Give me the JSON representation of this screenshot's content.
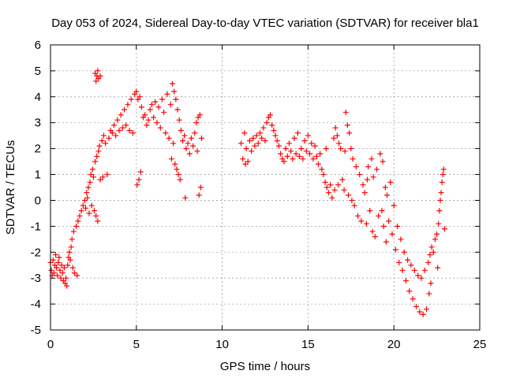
{
  "chart_data": {
    "type": "scatter",
    "title": "Day 053 of 2024, Sidereal Day-to-day VTEC variation (SDTVAR) for receiver bla1",
    "xlabel": "GPS time / hours",
    "ylabel": "SDTVAR / TECUs",
    "xlim": [
      0,
      25
    ],
    "ylim": [
      -5,
      6
    ],
    "xticks": [
      0,
      5,
      10,
      15,
      20,
      25
    ],
    "yticks": [
      -5,
      -4,
      -3,
      -2,
      -1,
      0,
      1,
      2,
      3,
      4,
      5,
      6
    ],
    "grid": true,
    "marker": "plus",
    "series_color": "#ff0000",
    "series": [
      {
        "name": "SDTVAR",
        "points": [
          [
            0.0,
            -2.4
          ],
          [
            0.05,
            -2.7
          ],
          [
            0.1,
            -2.9
          ],
          [
            0.15,
            -2.3
          ],
          [
            0.2,
            -2.8
          ],
          [
            0.25,
            -2.5
          ],
          [
            0.3,
            -2.1
          ],
          [
            0.35,
            -2.6
          ],
          [
            0.4,
            -2.9
          ],
          [
            0.45,
            -2.4
          ],
          [
            0.5,
            -2.2
          ],
          [
            0.55,
            -2.7
          ],
          [
            0.6,
            -3.0
          ],
          [
            0.65,
            -2.5
          ],
          [
            0.7,
            -2.8
          ],
          [
            0.75,
            -3.1
          ],
          [
            0.8,
            -2.6
          ],
          [
            0.85,
            -3.2
          ],
          [
            0.9,
            -3.0
          ],
          [
            0.95,
            -3.3
          ],
          [
            1.0,
            -2.5
          ],
          [
            1.05,
            -2.2
          ],
          [
            1.1,
            -2.0
          ],
          [
            1.15,
            -2.3
          ],
          [
            1.2,
            -1.8
          ],
          [
            1.25,
            -1.5
          ],
          [
            1.3,
            -2.6
          ],
          [
            1.35,
            -1.2
          ],
          [
            1.4,
            -2.8
          ],
          [
            1.5,
            -1.0
          ],
          [
            1.55,
            -2.9
          ],
          [
            1.6,
            -0.8
          ],
          [
            1.7,
            -0.6
          ],
          [
            1.8,
            -0.4
          ],
          [
            1.9,
            -0.2
          ],
          [
            2.0,
            0.0
          ],
          [
            2.05,
            -0.3
          ],
          [
            2.1,
            0.3
          ],
          [
            2.15,
            0.1
          ],
          [
            2.2,
            0.5
          ],
          [
            2.25,
            -0.5
          ],
          [
            2.3,
            0.7
          ],
          [
            2.35,
            1.0
          ],
          [
            2.4,
            -0.2
          ],
          [
            2.45,
            1.2
          ],
          [
            2.5,
            0.9
          ],
          [
            2.55,
            -0.4
          ],
          [
            2.6,
            1.5
          ],
          [
            2.65,
            -0.6
          ],
          [
            2.7,
            1.7
          ],
          [
            2.75,
            -0.8
          ],
          [
            2.8,
            1.9
          ],
          [
            2.85,
            2.1
          ],
          [
            2.9,
            0.8
          ],
          [
            3.0,
            2.3
          ],
          [
            3.05,
            0.9
          ],
          [
            3.1,
            2.5
          ],
          [
            3.2,
            2.2
          ],
          [
            3.3,
            1.0
          ],
          [
            3.4,
            2.4
          ],
          [
            3.5,
            2.7
          ],
          [
            3.6,
            2.6
          ],
          [
            3.7,
            2.9
          ],
          [
            3.8,
            2.5
          ],
          [
            3.9,
            3.1
          ],
          [
            4.0,
            2.7
          ],
          [
            4.1,
            3.3
          ],
          [
            4.2,
            2.8
          ],
          [
            4.3,
            3.5
          ],
          [
            4.4,
            2.9
          ],
          [
            4.5,
            3.7
          ],
          [
            4.6,
            2.7
          ],
          [
            4.7,
            3.9
          ],
          [
            4.8,
            2.6
          ],
          [
            4.9,
            4.1
          ],
          [
            5.0,
            4.2
          ],
          [
            5.05,
            0.6
          ],
          [
            5.1,
            3.9
          ],
          [
            5.15,
            0.8
          ],
          [
            5.2,
            4.0
          ],
          [
            5.25,
            1.1
          ],
          [
            5.3,
            3.6
          ],
          [
            5.4,
            3.2
          ],
          [
            5.5,
            3.3
          ],
          [
            5.6,
            2.9
          ],
          [
            5.7,
            3.1
          ],
          [
            5.8,
            3.5
          ],
          [
            5.9,
            3.7
          ],
          [
            6.0,
            3.2
          ],
          [
            6.1,
            3.8
          ],
          [
            6.2,
            3.0
          ],
          [
            6.3,
            3.6
          ],
          [
            6.4,
            2.8
          ],
          [
            6.5,
            3.9
          ],
          [
            6.6,
            3.4
          ],
          [
            6.7,
            2.6
          ],
          [
            6.8,
            4.1
          ],
          [
            6.9,
            2.4
          ],
          [
            7.0,
            3.7
          ],
          [
            7.05,
            1.6
          ],
          [
            7.1,
            4.5
          ],
          [
            7.15,
            2.2
          ],
          [
            7.2,
            4.2
          ],
          [
            7.25,
            1.4
          ],
          [
            7.3,
            3.9
          ],
          [
            7.35,
            1.2
          ],
          [
            7.4,
            3.5
          ],
          [
            7.45,
            1.0
          ],
          [
            7.5,
            3.1
          ],
          [
            7.55,
            0.8
          ],
          [
            7.6,
            2.7
          ],
          [
            7.7,
            2.3
          ],
          [
            7.8,
            2.5
          ],
          [
            7.85,
            0.1
          ],
          [
            7.9,
            2.0
          ],
          [
            8.0,
            2.2
          ],
          [
            8.1,
            1.8
          ],
          [
            8.2,
            2.4
          ],
          [
            8.3,
            2.1
          ],
          [
            8.4,
            2.6
          ],
          [
            8.5,
            3.0
          ],
          [
            8.55,
            1.9
          ],
          [
            8.6,
            3.2
          ],
          [
            8.65,
            0.2
          ],
          [
            8.7,
            3.3
          ],
          [
            8.75,
            0.5
          ],
          [
            8.8,
            2.4
          ],
          [
            2.6,
            4.9
          ],
          [
            2.7,
            4.8
          ],
          [
            2.75,
            5.0
          ],
          [
            2.8,
            4.7
          ],
          [
            2.9,
            4.8
          ],
          [
            2.65,
            4.6
          ],
          [
            11.1,
            2.2
          ],
          [
            11.2,
            1.6
          ],
          [
            11.3,
            2.6
          ],
          [
            11.35,
            1.4
          ],
          [
            11.4,
            2.0
          ],
          [
            11.5,
            1.5
          ],
          [
            11.6,
            2.3
          ],
          [
            11.7,
            1.9
          ],
          [
            11.8,
            2.4
          ],
          [
            11.9,
            2.1
          ],
          [
            12.0,
            2.5
          ],
          [
            12.1,
            2.2
          ],
          [
            12.2,
            2.6
          ],
          [
            12.3,
            2.4
          ],
          [
            12.4,
            2.8
          ],
          [
            12.5,
            2.3
          ],
          [
            12.6,
            3.0
          ],
          [
            12.7,
            3.2
          ],
          [
            12.8,
            3.3
          ],
          [
            12.9,
            2.9
          ],
          [
            13.0,
            2.7
          ],
          [
            13.1,
            2.5
          ],
          [
            13.2,
            2.3
          ],
          [
            13.3,
            2.1
          ],
          [
            13.4,
            1.8
          ],
          [
            13.5,
            1.6
          ],
          [
            13.6,
            1.5
          ],
          [
            13.7,
            2.0
          ],
          [
            13.8,
            1.7
          ],
          [
            13.9,
            2.2
          ],
          [
            14.0,
            1.9
          ],
          [
            14.1,
            1.6
          ],
          [
            14.2,
            2.4
          ],
          [
            14.3,
            1.8
          ],
          [
            14.4,
            2.6
          ],
          [
            14.5,
            1.7
          ],
          [
            14.6,
            2.0
          ],
          [
            14.7,
            1.6
          ],
          [
            14.8,
            2.3
          ],
          [
            14.9,
            1.9
          ],
          [
            15.0,
            2.5
          ],
          [
            15.1,
            1.8
          ],
          [
            15.2,
            2.2
          ],
          [
            15.3,
            1.6
          ],
          [
            15.4,
            2.1
          ],
          [
            15.5,
            1.7
          ],
          [
            15.6,
            1.4
          ],
          [
            15.7,
            1.8
          ],
          [
            15.8,
            1.2
          ],
          [
            15.9,
            1.0
          ],
          [
            16.0,
            0.7
          ],
          [
            16.05,
            2.0
          ],
          [
            16.1,
            0.5
          ],
          [
            16.2,
            0.3
          ],
          [
            16.3,
            0.6
          ],
          [
            16.4,
            0.1
          ],
          [
            16.5,
            2.4
          ],
          [
            16.55,
            0.4
          ],
          [
            16.6,
            2.8
          ],
          [
            16.7,
            2.5
          ],
          [
            16.75,
            0.6
          ],
          [
            16.8,
            2.2
          ],
          [
            16.9,
            2.0
          ],
          [
            17.0,
            0.8
          ],
          [
            17.1,
            0.4
          ],
          [
            17.15,
            1.9
          ],
          [
            17.2,
            3.4
          ],
          [
            17.3,
            2.9
          ],
          [
            17.35,
            0.2
          ],
          [
            17.4,
            2.6
          ],
          [
            17.5,
            2.0
          ],
          [
            17.55,
            0.0
          ],
          [
            17.6,
            1.6
          ],
          [
            17.7,
            -0.2
          ],
          [
            17.8,
            1.3
          ],
          [
            17.9,
            -0.6
          ],
          [
            18.0,
            1.0
          ],
          [
            18.1,
            -0.8
          ],
          [
            18.2,
            0.6
          ],
          [
            18.3,
            0.3
          ],
          [
            18.4,
            -0.9
          ],
          [
            18.45,
            0.8
          ],
          [
            18.5,
            1.3
          ],
          [
            18.6,
            -0.4
          ],
          [
            18.7,
            1.6
          ],
          [
            18.75,
            -1.2
          ],
          [
            18.8,
            0.9
          ],
          [
            18.9,
            -1.4
          ],
          [
            19.0,
            1.2
          ],
          [
            19.1,
            -0.6
          ],
          [
            19.2,
            1.8
          ],
          [
            19.3,
            -0.4
          ],
          [
            19.35,
            1.5
          ],
          [
            19.4,
            -1.0
          ],
          [
            19.5,
            0.5
          ],
          [
            19.55,
            -1.6
          ],
          [
            19.6,
            0.2
          ],
          [
            19.7,
            -0.8
          ],
          [
            19.8,
            0.7
          ],
          [
            19.9,
            -1.3
          ],
          [
            20.0,
            -0.2
          ],
          [
            20.1,
            -1.9
          ],
          [
            20.2,
            -1.0
          ],
          [
            20.3,
            -2.4
          ],
          [
            20.4,
            -1.5
          ],
          [
            20.5,
            -2.7
          ],
          [
            20.6,
            -2.0
          ],
          [
            20.7,
            -3.1
          ],
          [
            20.8,
            -2.3
          ],
          [
            20.9,
            -3.5
          ],
          [
            21.0,
            -2.5
          ],
          [
            21.1,
            -3.8
          ],
          [
            21.2,
            -2.7
          ],
          [
            21.3,
            -4.1
          ],
          [
            21.4,
            -2.9
          ],
          [
            21.5,
            -4.3
          ],
          [
            21.6,
            -3.0
          ],
          [
            21.7,
            -4.4
          ],
          [
            21.8,
            -2.7
          ],
          [
            21.9,
            -4.2
          ],
          [
            22.0,
            -2.4
          ],
          [
            22.05,
            -3.6
          ],
          [
            22.1,
            -2.1
          ],
          [
            22.15,
            -3.2
          ],
          [
            22.2,
            -1.8
          ],
          [
            22.3,
            -2.0
          ],
          [
            22.4,
            -1.5
          ],
          [
            22.5,
            -1.3
          ],
          [
            22.55,
            -2.6
          ],
          [
            22.6,
            -0.9
          ],
          [
            22.65,
            -0.4
          ],
          [
            22.7,
            0.0
          ],
          [
            22.75,
            0.3
          ],
          [
            22.8,
            0.7
          ],
          [
            22.85,
            1.0
          ],
          [
            22.9,
            1.2
          ],
          [
            22.95,
            -1.1
          ]
        ]
      }
    ]
  }
}
